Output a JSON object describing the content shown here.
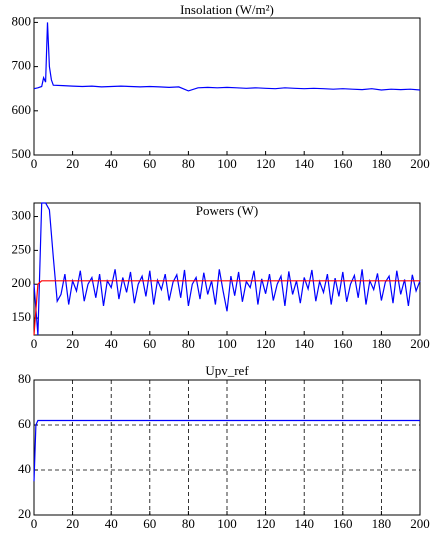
{
  "chart_data": [
    {
      "type": "line",
      "title": "Insolation (W/m²)",
      "xlim": [
        0,
        200
      ],
      "ylim": [
        500,
        810
      ],
      "xticks": [
        0,
        20,
        40,
        60,
        80,
        100,
        120,
        140,
        160,
        180,
        200
      ],
      "yticks": [
        500,
        600,
        700,
        800
      ],
      "grid": false,
      "series": [
        {
          "color": "#0000ff",
          "x": [
            0,
            2,
            4,
            5,
            6,
            7,
            8,
            9,
            10,
            15,
            20,
            25,
            30,
            35,
            40,
            45,
            50,
            55,
            60,
            65,
            70,
            75,
            80,
            85,
            90,
            95,
            100,
            105,
            110,
            115,
            120,
            125,
            130,
            135,
            140,
            145,
            150,
            155,
            160,
            165,
            170,
            175,
            180,
            185,
            190,
            195,
            200
          ],
          "values": [
            650,
            652,
            655,
            675,
            665,
            800,
            700,
            670,
            658,
            657,
            656,
            655,
            656,
            654,
            655,
            656,
            655,
            654,
            655,
            654,
            653,
            654,
            645,
            652,
            653,
            652,
            653,
            652,
            651,
            652,
            651,
            650,
            652,
            651,
            650,
            651,
            650,
            649,
            650,
            649,
            648,
            650,
            647,
            649,
            648,
            649,
            647
          ]
        }
      ]
    },
    {
      "type": "line",
      "title": "Powers (W)",
      "xlim": [
        0,
        200
      ],
      "ylim": [
        125,
        320
      ],
      "xticks": [
        0,
        20,
        40,
        60,
        80,
        100,
        120,
        140,
        160,
        180,
        200
      ],
      "yticks": [
        150,
        200,
        250,
        300
      ],
      "grid": false,
      "series": [
        {
          "color": "#0000ff",
          "x": [
            0,
            2,
            4,
            6,
            8,
            10,
            12,
            14,
            16,
            18,
            20,
            22,
            24,
            26,
            28,
            30,
            32,
            34,
            36,
            38,
            40,
            42,
            44,
            46,
            48,
            50,
            52,
            54,
            56,
            58,
            60,
            62,
            64,
            66,
            68,
            70,
            72,
            74,
            76,
            78,
            80,
            82,
            84,
            86,
            88,
            90,
            92,
            94,
            96,
            98,
            100,
            102,
            104,
            106,
            108,
            110,
            112,
            114,
            116,
            118,
            120,
            122,
            124,
            126,
            128,
            130,
            132,
            134,
            136,
            138,
            140,
            142,
            144,
            146,
            148,
            150,
            152,
            154,
            156,
            158,
            160,
            162,
            164,
            166,
            168,
            170,
            172,
            174,
            176,
            178,
            180,
            182,
            184,
            186,
            188,
            190,
            192,
            194,
            196,
            198,
            200
          ],
          "values": [
            200,
            125,
            320,
            320,
            310,
            240,
            175,
            185,
            215,
            170,
            205,
            190,
            220,
            175,
            200,
            210,
            180,
            215,
            168,
            205,
            195,
            222,
            178,
            210,
            188,
            218,
            172,
            200,
            212,
            182,
            220,
            170,
            206,
            192,
            215,
            176,
            203,
            214,
            180,
            221,
            168,
            200,
            210,
            178,
            217,
            185,
            205,
            170,
            222,
            190,
            160,
            212,
            183,
            218,
            174,
            204,
            195,
            220,
            170,
            208,
            186,
            215,
            176,
            200,
            212,
            168,
            219,
            185,
            205,
            172,
            210,
            193,
            221,
            175,
            204,
            188,
            215,
            170,
            209,
            182,
            218,
            174,
            200,
            213,
            180,
            222,
            170,
            205,
            192,
            216,
            176,
            203,
            212,
            172,
            220,
            185,
            207,
            168,
            214,
            190,
            205
          ]
        },
        {
          "color": "#ff0000",
          "x": [
            0,
            2,
            4,
            200
          ],
          "values": [
            125,
            200,
            205,
            205
          ]
        }
      ]
    },
    {
      "type": "line",
      "title": "Upv_ref",
      "xlim": [
        0,
        200
      ],
      "ylim": [
        20,
        80
      ],
      "xticks": [
        0,
        20,
        40,
        60,
        80,
        100,
        120,
        140,
        160,
        180,
        200
      ],
      "yticks": [
        20,
        40,
        60,
        80
      ],
      "grid": true,
      "series": [
        {
          "color": "#0000ff",
          "x": [
            0,
            1,
            2,
            200
          ],
          "values": [
            35,
            60,
            62,
            62
          ]
        }
      ]
    }
  ]
}
